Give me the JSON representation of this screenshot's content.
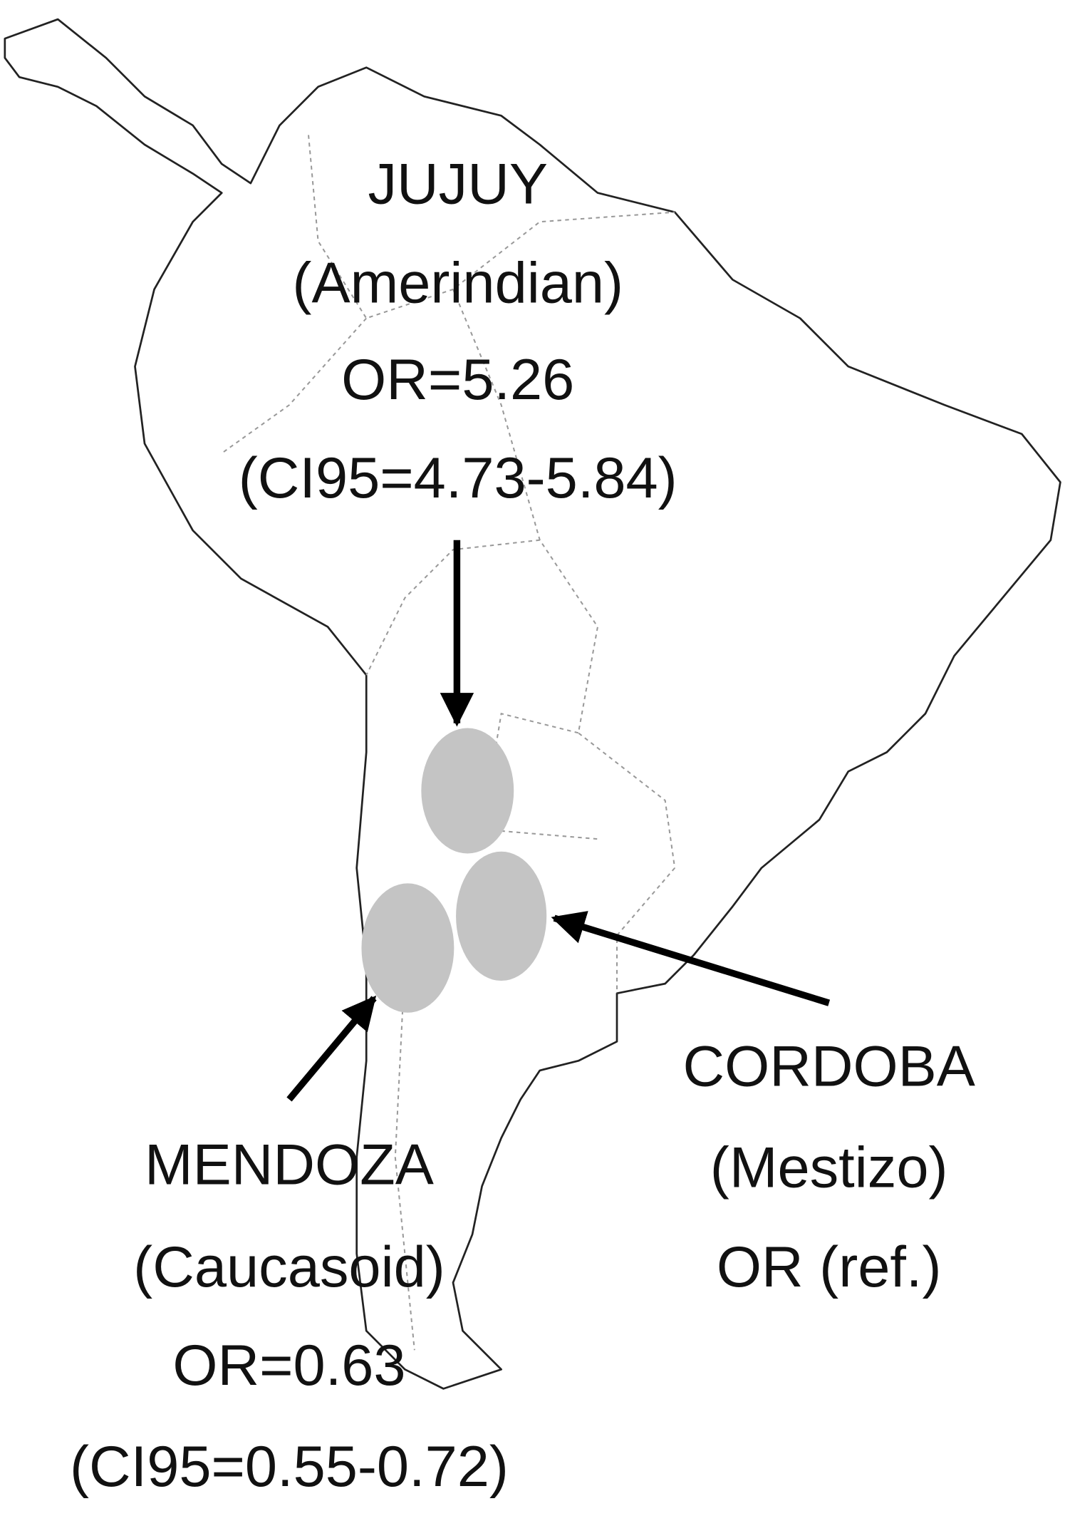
{
  "regions": [
    {
      "name": "JUJUY",
      "population": "(Amerindian)",
      "odds_ratio": "OR=5.26",
      "confidence_interval": "(CI95=4.73-5.84)"
    },
    {
      "name": "MENDOZA",
      "population": "(Caucasoid)",
      "odds_ratio": "OR=0.63",
      "confidence_interval": "(CI95=0.55-0.72)"
    },
    {
      "name": "CORDOBA",
      "population": "(Mestizo)",
      "odds_ratio": "OR (ref.)"
    }
  ]
}
